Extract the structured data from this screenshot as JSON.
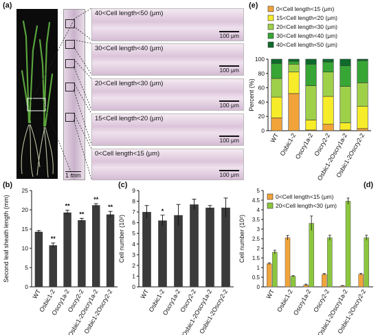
{
  "panels": {
    "a": "(a)",
    "b": "(b)",
    "c": "(c)",
    "d": "(d)",
    "e": "(e)"
  },
  "panel_a": {
    "micrographs": [
      {
        "label": "40<Cell length<50 (μm)",
        "scale": "100 μm"
      },
      {
        "label": "30<Cell length<40 (μm)",
        "scale": "100 μm"
      },
      {
        "label": "20<Cell length<30 (μm)",
        "scale": "100 μm"
      },
      {
        "label": "15<Cell length<20 (μm)",
        "scale": "100 μm"
      },
      {
        "label": "0<Cell length<15 (μm)",
        "scale": "100 μm"
      }
    ],
    "stem_scale": "1 mm",
    "colors": {
      "photo_bg": "#0b0b0b",
      "plant": "#4f9a36",
      "stain": "#c9afcb"
    }
  },
  "chart_data": [
    {
      "id": "b",
      "type": "bar",
      "categories": [
        "WT",
        "Osbic1-2",
        "Oscry1a-2",
        "Oscry2-2",
        "Osbic1-2Oscry1a-2",
        "Osbic1-2Oscry2-2"
      ],
      "values": [
        14.3,
        10.8,
        19.3,
        17.3,
        21.2,
        18.8
      ],
      "errors": [
        0.3,
        0.6,
        0.6,
        0.5,
        0.4,
        0.8
      ],
      "significance": [
        "",
        "**",
        "**",
        "**",
        "**",
        "**"
      ],
      "ylabel": "Second leaf sheath length (mm)",
      "ylim": [
        0,
        25
      ],
      "yticks": [
        0,
        5,
        10,
        15,
        20,
        25
      ],
      "color": "#3a3a3a"
    },
    {
      "id": "c",
      "type": "bar",
      "categories": [
        "WT",
        "Osbic1-2",
        "Oscry1a-2",
        "Oscry2-2",
        "Osbic1-2Oscry1a-2",
        "Osbic1-2Oscry2-2"
      ],
      "values": [
        7.0,
        6.2,
        6.7,
        7.7,
        7.4,
        7.4
      ],
      "errors": [
        0.6,
        0.5,
        1.0,
        0.5,
        0.2,
        0.9
      ],
      "significance": [
        "",
        "*",
        "",
        "",
        "",
        ""
      ],
      "ylabel": "Cell number (10²)",
      "ylim": [
        0,
        9
      ],
      "yticks": [
        0,
        1,
        2,
        3,
        4,
        5,
        6,
        7,
        8,
        9
      ],
      "color": "#3a3a3a"
    },
    {
      "id": "d",
      "type": "bar",
      "categories": [
        "WT",
        "Osbic1-2",
        "Oscry1a-2",
        "Oscry2-2",
        "Osbic1-2Oscry1a-2",
        "Osbic1-2Oscry2-2"
      ],
      "series": [
        {
          "name": "0<Cell length<15 (μm)",
          "values": [
            1.2,
            2.55,
            0.1,
            0.65,
            0.05,
            0.65
          ],
          "errors": [
            0.05,
            0.12,
            0.04,
            0.04,
            0.02,
            0.04
          ],
          "color": "#f2a43a"
        },
        {
          "name": "20<Cell length<30 (μm)",
          "values": [
            1.8,
            0.55,
            3.3,
            2.55,
            4.45,
            2.55
          ],
          "errors": [
            0.1,
            0.03,
            0.38,
            0.13,
            0.16,
            0.13
          ],
          "color": "#8cc63e"
        }
      ],
      "ylabel": "Cell number (10²)",
      "ylim": [
        0,
        5
      ],
      "yticks": [
        "0",
        "0.5",
        "1",
        "1.5",
        "2",
        "2.5",
        "3",
        "3.5",
        "4",
        "4.5",
        "5"
      ],
      "legend": "top-left"
    },
    {
      "id": "e",
      "type": "bar",
      "stacked": true,
      "categories": [
        "WT",
        "Osbic1-2",
        "Oscry1a-2",
        "Oscry2-2",
        "Osbic1-2Oscry1a-2",
        "Osbic1-2Oscry2-2"
      ],
      "series": [
        {
          "name": "0<Cell length<15 (μm)",
          "values": [
            18,
            52,
            1,
            9,
            1,
            3
          ],
          "color": "#f2a43a"
        },
        {
          "name": "15<Cell length<20 (μm)",
          "values": [
            29,
            30,
            14,
            39,
            10,
            31
          ],
          "color": "#f7ec2a"
        },
        {
          "name": "20<Cell length<30 (μm)",
          "values": [
            26,
            11,
            48,
            34,
            51,
            33
          ],
          "color": "#9fd04a"
        },
        {
          "name": "30<Cell length<40 (μm)",
          "values": [
            21,
            4,
            30,
            14,
            29,
            31
          ],
          "color": "#37a635"
        },
        {
          "name": "40<Cell length<50 (μm)",
          "values": [
            6,
            3,
            7,
            4,
            9,
            2
          ],
          "color": "#0e6b2c"
        }
      ],
      "ylabel": "Percent (%)",
      "ylim": [
        0,
        100
      ],
      "yticks": [
        0,
        20,
        40,
        60,
        80,
        100
      ],
      "legend": "top-left"
    }
  ]
}
